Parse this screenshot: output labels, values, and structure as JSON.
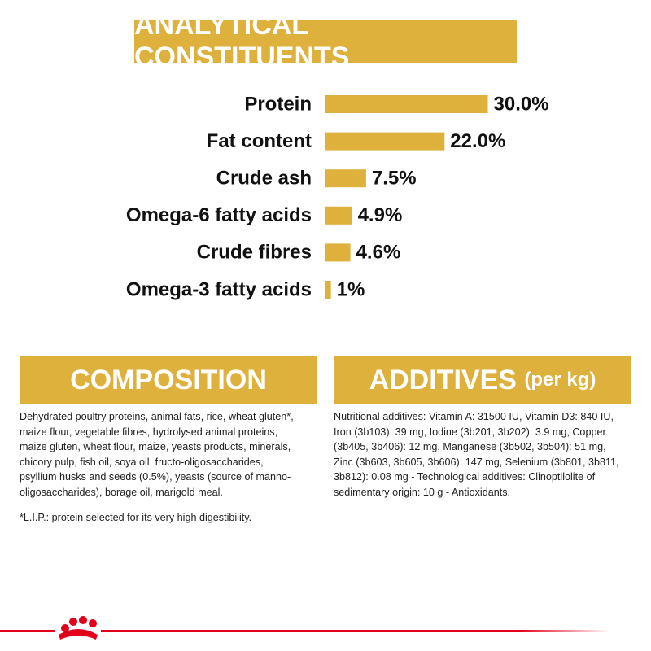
{
  "chart_data": {
    "type": "bar",
    "orientation": "horizontal",
    "title": "ANALYTICAL CONSTITUENTS",
    "categories": [
      "Protein",
      "Fat content",
      "Crude ash",
      "Omega-6 fatty acids",
      "Crude fibres",
      "Omega-3 fatty acids"
    ],
    "values": [
      30,
      22,
      7.5,
      4.9,
      4.6,
      1
    ],
    "value_labels": [
      "30.0%",
      "22.0%",
      "7.5%",
      "4.9%",
      "4.6%",
      "1%"
    ],
    "color": "#deb03c"
  },
  "composition": {
    "title": "COMPOSITION",
    "lines": [
      "Dehydrated poultry proteins, animal fats, rice, wheat gluten*,",
      "maize flour, vegetable fibres, hydrolysed animal proteins,",
      "maize gluten, wheat flour, maize, yeasts products, minerals,",
      "chicory pulp, fish oil, soya oil, fructo-oligosaccharides,",
      "psyllium husks and seeds (0.5%), yeasts (source of manno-",
      "oligosaccharides), borage oil, marigold meal."
    ],
    "note": "*L.I.P.: protein selected for its very high digestibility."
  },
  "additives": {
    "title": "ADDITIVES",
    "unit": "(per kg)",
    "lines": [
      "Nutritional additives: Vitamin A: 31500 IU, Vitamin D3: 840 IU,",
      "Iron (3b103): 39 mg, Iodine (3b201, 3b202): 3.9 mg, Copper",
      "(3b405, 3b406): 12 mg, Manganese (3b502, 3b504): 51 mg,",
      "Zinc (3b603, 3b605, 3b606): 147 mg, Selenium (3b801, 3b811,",
      "3b812): 0.08 mg - Technological additives: Clinoptilolite of",
      "sedimentary origin: 10 g - Antioxidants."
    ]
  }
}
